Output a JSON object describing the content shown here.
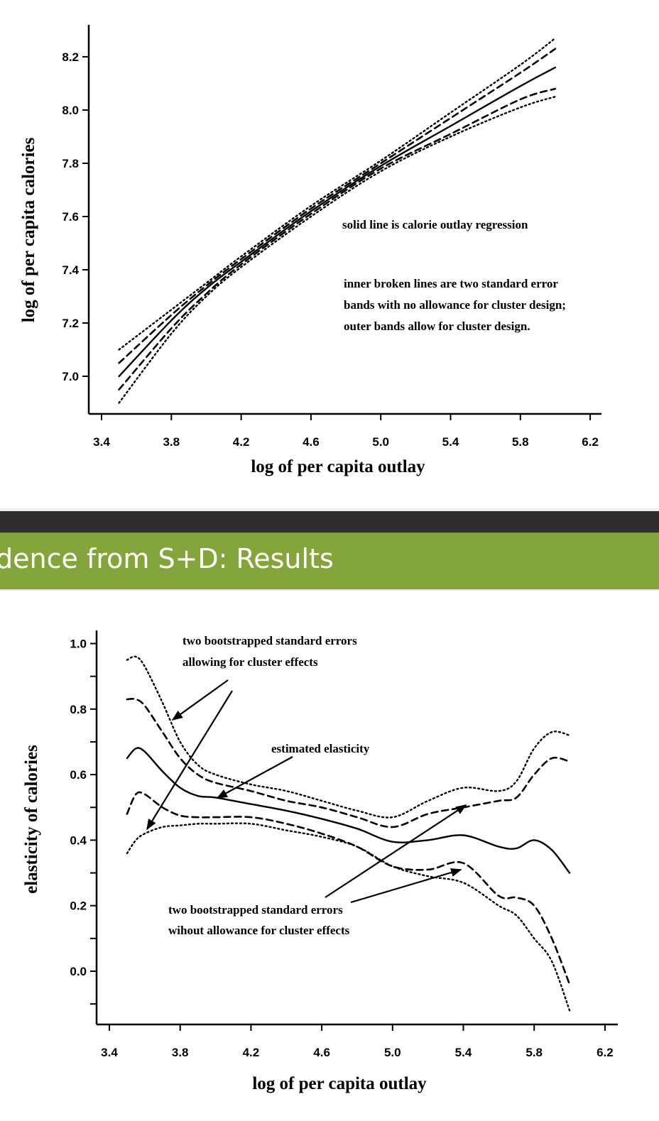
{
  "slide": {
    "title": "dence from S+D: Results",
    "colors": {
      "title_bar": "#84a53b",
      "top_bar": "#2e2e2e",
      "title_text": "#ffffff"
    }
  },
  "chart_data": [
    {
      "type": "line",
      "title": "",
      "xlabel": "log of per capita outlay",
      "ylabel": "log of per capita calories",
      "xlim": [
        3.4,
        6.2
      ],
      "ylim": [
        6.9,
        8.3
      ],
      "x_ticks": [
        "3.4",
        "3.8",
        "4.2",
        "4.6",
        "5.0",
        "5.4",
        "5.8",
        "6.2"
      ],
      "y_ticks": [
        "7.0",
        "7.2",
        "7.4",
        "7.6",
        "7.8",
        "8.0",
        "8.2"
      ],
      "grid": false,
      "annotations": [
        "solid line is calorie outlay regression",
        "inner broken lines are two standard error",
        "bands with no allowance for cluster design;",
        "outer bands allow for cluster design."
      ],
      "x": [
        3.5,
        3.8,
        4.0,
        4.2,
        4.6,
        5.0,
        5.4,
        5.8,
        6.0
      ],
      "series": [
        {
          "name": "calorie outlay regression (solid)",
          "style": "solid",
          "values": [
            7.0,
            7.21,
            7.33,
            7.43,
            7.62,
            7.79,
            7.94,
            8.09,
            8.16
          ]
        },
        {
          "name": "upper band, no cluster allowance (inner dashed)",
          "style": "dashed",
          "values": [
            7.05,
            7.23,
            7.34,
            7.44,
            7.63,
            7.8,
            7.97,
            8.14,
            8.23
          ]
        },
        {
          "name": "lower band, no cluster allowance (inner dashed)",
          "style": "dashed",
          "values": [
            6.95,
            7.18,
            7.31,
            7.42,
            7.61,
            7.78,
            7.91,
            8.04,
            8.08
          ]
        },
        {
          "name": "upper band, cluster design (outer dotted)",
          "style": "dotted",
          "values": [
            7.1,
            7.25,
            7.35,
            7.45,
            7.64,
            7.81,
            7.99,
            8.17,
            8.27
          ]
        },
        {
          "name": "lower band, cluster design (outer dotted)",
          "style": "dotted",
          "values": [
            6.9,
            7.16,
            7.3,
            7.41,
            7.6,
            7.77,
            7.9,
            8.01,
            8.05
          ]
        }
      ]
    },
    {
      "type": "line",
      "title": "",
      "xlabel": "log of per capita outlay",
      "ylabel": "elasticity of calories",
      "xlim": [
        3.4,
        6.2
      ],
      "ylim": [
        -0.15,
        1.05
      ],
      "x_ticks": [
        "3.4",
        "3.8",
        "4.2",
        "4.6",
        "5.0",
        "5.4",
        "5.8",
        "6.2"
      ],
      "y_ticks": [
        "0.0",
        "0.2",
        "0.4",
        "0.6",
        "0.8",
        "1.0"
      ],
      "grid": false,
      "annotations": [
        "two bootstrapped standard errors",
        "allowing for cluster effects",
        "estimated elasticity",
        "two bootstrapped standard errors",
        "wihout allowance for cluster effects"
      ],
      "x": [
        3.5,
        3.55,
        3.6,
        3.7,
        3.8,
        3.9,
        4.0,
        4.2,
        4.4,
        4.6,
        4.8,
        5.0,
        5.2,
        5.4,
        5.6,
        5.7,
        5.8,
        5.9,
        6.0
      ],
      "series": [
        {
          "name": "estimated elasticity (solid)",
          "style": "solid",
          "values": [
            0.65,
            0.68,
            0.67,
            0.61,
            0.56,
            0.535,
            0.53,
            0.51,
            0.49,
            0.465,
            0.435,
            0.395,
            0.4,
            0.415,
            0.38,
            0.375,
            0.4,
            0.37,
            0.3
          ]
        },
        {
          "name": "upper, no cluster allowance (dashed)",
          "style": "dashed",
          "values": [
            0.83,
            0.83,
            0.81,
            0.73,
            0.65,
            0.6,
            0.575,
            0.55,
            0.52,
            0.5,
            0.47,
            0.44,
            0.48,
            0.5,
            0.52,
            0.53,
            0.6,
            0.65,
            0.64
          ]
        },
        {
          "name": "lower, no cluster allowance (dashed)",
          "style": "dashed",
          "values": [
            0.48,
            0.54,
            0.54,
            0.5,
            0.475,
            0.47,
            0.47,
            0.47,
            0.45,
            0.42,
            0.38,
            0.32,
            0.31,
            0.33,
            0.23,
            0.225,
            0.2,
            0.1,
            -0.04
          ]
        },
        {
          "name": "upper, cluster effects (dotted)",
          "style": "dotted",
          "values": [
            0.95,
            0.96,
            0.93,
            0.82,
            0.7,
            0.63,
            0.6,
            0.57,
            0.55,
            0.52,
            0.49,
            0.47,
            0.52,
            0.56,
            0.55,
            0.58,
            0.68,
            0.73,
            0.72
          ]
        },
        {
          "name": "lower, cluster effects (dotted)",
          "style": "dotted",
          "values": [
            0.36,
            0.4,
            0.42,
            0.44,
            0.445,
            0.45,
            0.45,
            0.45,
            0.43,
            0.41,
            0.38,
            0.32,
            0.29,
            0.27,
            0.2,
            0.17,
            0.1,
            0.03,
            -0.12
          ]
        }
      ]
    }
  ]
}
